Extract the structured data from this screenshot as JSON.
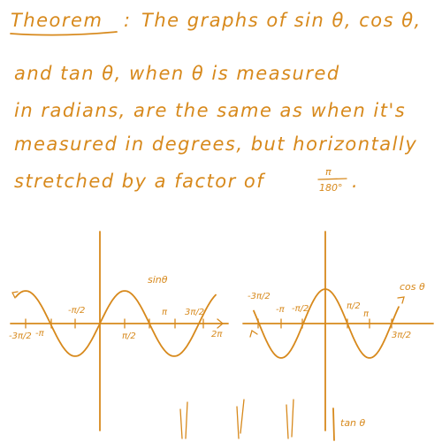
{
  "ink_color": "#d7891c",
  "note": {
    "heading": "Theorem",
    "colon": ":",
    "line1_rest": "The graphs of  sin θ, cos θ,",
    "line2": "and  tan θ,  when  θ  is measured",
    "line3": "in radians, are the same as when it's",
    "line4": "measured in degrees, but horizontally",
    "line5_a": "stretched by a factor of",
    "fraction_num": "π",
    "fraction_den": "180°",
    "line5_end": "."
  },
  "sin_graph": {
    "curve_label": "sinθ",
    "ticks": {
      "neg_three_pi_over_2": "-3π/2",
      "neg_pi": "-π",
      "neg_pi_over_2": "-π/2",
      "pi_over_2": "π/2",
      "pi": "π",
      "three_pi_over_2": "3π/2",
      "two_pi": "2π"
    }
  },
  "cos_graph": {
    "curve_label": "cos θ",
    "ticks": {
      "neg_three_pi_over_2": "-3π/2",
      "neg_pi": "-π",
      "neg_pi_over_2": "-π/2",
      "pi_over_2": "π/2",
      "pi": "π",
      "three_pi_over_2": "3π/2"
    }
  },
  "tan_graph": {
    "curve_label": "tan θ"
  }
}
